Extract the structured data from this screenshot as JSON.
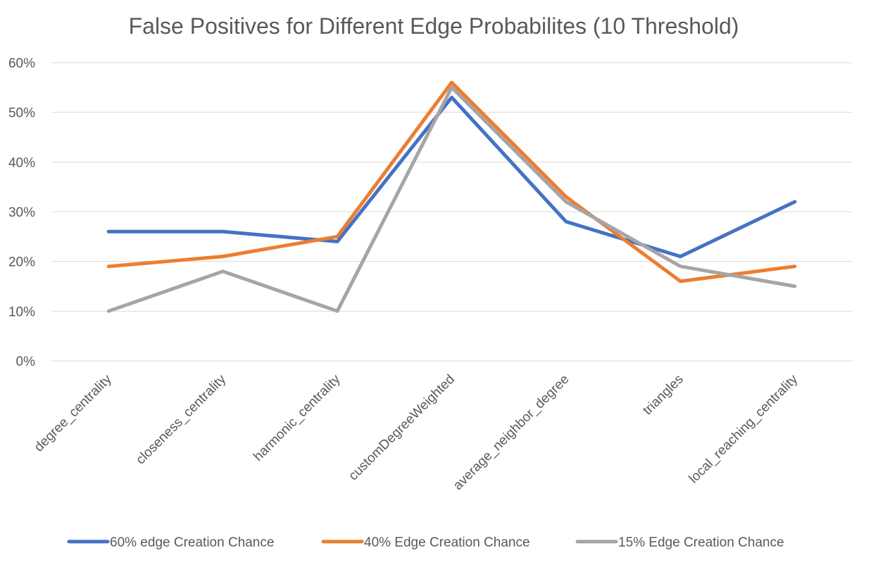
{
  "chart_data": {
    "type": "line",
    "title": "False Positives for Different Edge Probabilites (10 Threshold)",
    "xlabel": "",
    "ylabel": "",
    "categories": [
      "degree_centrality",
      "closeness_centrality",
      "harmonic_centrality",
      "customDegreeWeighted",
      "average_neighbor_degree",
      "triangles",
      "local_reaching_centrality"
    ],
    "ylim": [
      0,
      60
    ],
    "yticks": [
      0,
      10,
      20,
      30,
      40,
      50,
      60
    ],
    "ytick_labels": [
      "0%",
      "10%",
      "20%",
      "30%",
      "40%",
      "50%",
      "60%"
    ],
    "grid": true,
    "legend_position": "bottom",
    "series": [
      {
        "name": "60% edge Creation Chance",
        "color": "#4472C4",
        "values": [
          26,
          26,
          24,
          53,
          28,
          21,
          32
        ]
      },
      {
        "name": "40% Edge Creation Chance",
        "color": "#ED7D31",
        "values": [
          19,
          21,
          25,
          56,
          33,
          16,
          19
        ]
      },
      {
        "name": "15% Edge Creation Chance",
        "color": "#A5A5A5",
        "values": [
          10,
          18,
          10,
          55,
          32,
          19,
          15
        ]
      }
    ]
  }
}
